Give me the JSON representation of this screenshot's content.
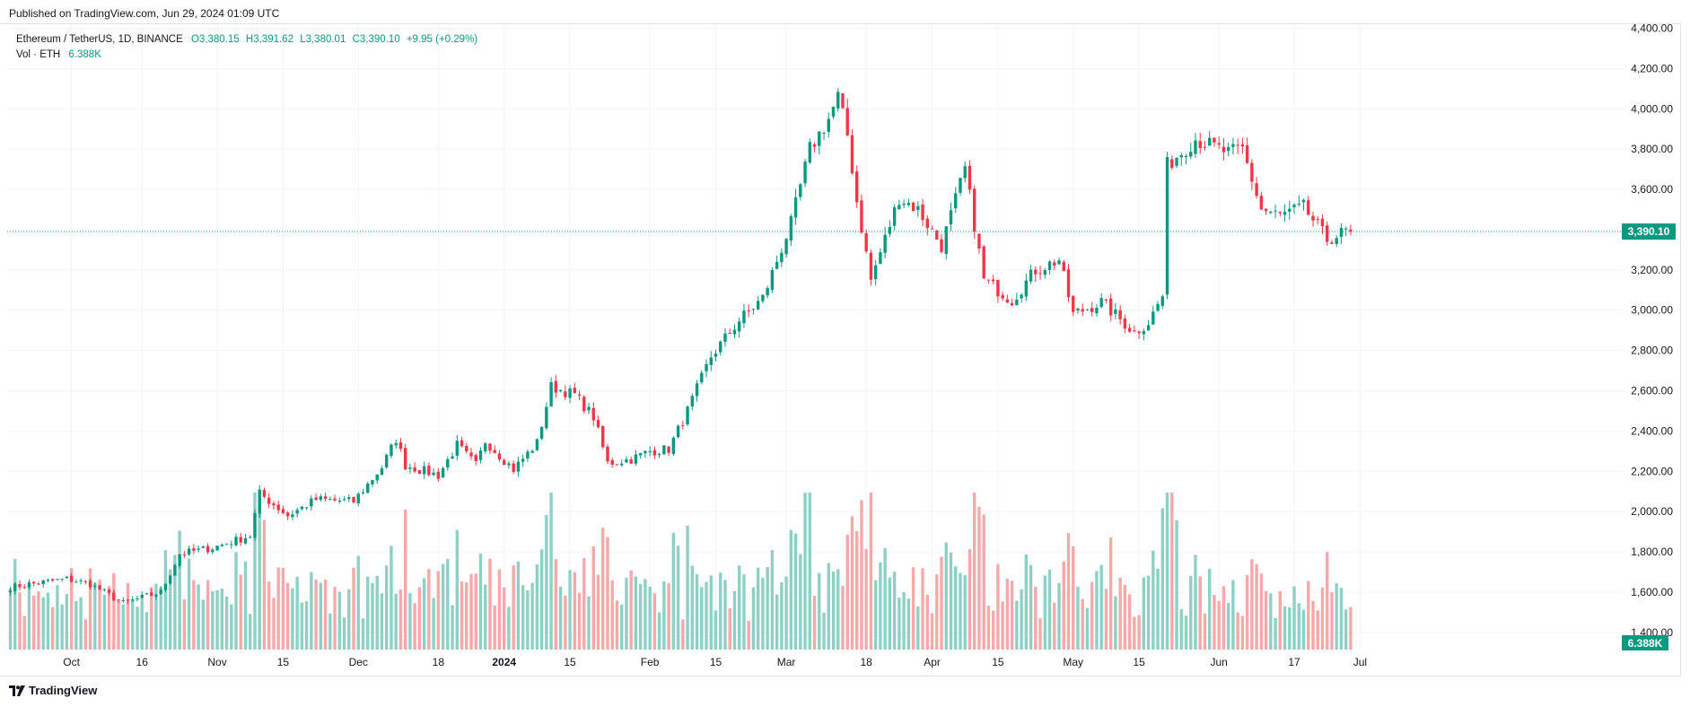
{
  "header": {
    "published": "Published on TradingView.com, Jun 29, 2024 01:09 UTC"
  },
  "legend": {
    "symbol": "Ethereum / TetherUS, 1D, BINANCE",
    "open": "O3,380.15",
    "high": "H3,391.62",
    "low": "L3,380.01",
    "close": "C3,390.10",
    "change": "+9.95 (+0.29%)",
    "volume_label": "Vol · ETH",
    "volume_value": "6.388K"
  },
  "footer": {
    "brand": "TradingView"
  },
  "colors": {
    "up": "#089981",
    "down": "#f23645",
    "vol_up": "#8fd0c6",
    "vol_down": "#f7a9a9",
    "grid": "#f0f3fa",
    "text": "#131722"
  },
  "chart_data": {
    "type": "candlestick",
    "series_name": "Ethereum / TetherUS, 1D, BINANCE",
    "price_axis": {
      "ylim": [
        1310,
        4420
      ],
      "ticks": [
        1400,
        1600,
        1800,
        2000,
        2200,
        2400,
        2600,
        2800,
        3000,
        3200,
        3400,
        3600,
        3800,
        4000,
        4200,
        4400
      ],
      "tick_labels": [
        "1,400.00",
        "1,600.00",
        "1,800.00",
        "2,000.00",
        "2,200.00",
        "2,400.00",
        "2,600.00",
        "2,800.00",
        "3,000.00",
        "3,200.00",
        "3,400.00",
        "3,600.00",
        "3,800.00",
        "4,000.00",
        "4,200.00",
        "4,400.00"
      ]
    },
    "time_axis": {
      "start": "2023-09-18",
      "end": "2024-06-29",
      "ticks": [
        {
          "date": "2023-10-01",
          "label": "Oct"
        },
        {
          "date": "2023-10-16",
          "label": "16"
        },
        {
          "date": "2023-11-01",
          "label": "Nov"
        },
        {
          "date": "2023-11-15",
          "label": "15"
        },
        {
          "date": "2023-12-01",
          "label": "Dec"
        },
        {
          "date": "2023-12-18",
          "label": "18"
        },
        {
          "date": "2024-01-01",
          "label": "2024"
        },
        {
          "date": "2024-01-15",
          "label": "15"
        },
        {
          "date": "2024-02-01",
          "label": "Feb"
        },
        {
          "date": "2024-02-15",
          "label": "15"
        },
        {
          "date": "2024-03-01",
          "label": "Mar"
        },
        {
          "date": "2024-03-18",
          "label": "18"
        },
        {
          "date": "2024-04-01",
          "label": "Apr"
        },
        {
          "date": "2024-04-15",
          "label": "15"
        },
        {
          "date": "2024-05-01",
          "label": "May"
        },
        {
          "date": "2024-05-15",
          "label": "15"
        },
        {
          "date": "2024-06-01",
          "label": "Jun"
        },
        {
          "date": "2024-06-17",
          "label": "17"
        },
        {
          "date": "2024-07-01",
          "label": "Jul"
        }
      ]
    },
    "last_price": {
      "value": 3390.1,
      "label": "3,390.10"
    },
    "last_volume": {
      "label": "6.388K"
    },
    "close_anchors": [
      [
        "2023-09-18",
        1625
      ],
      [
        "2023-09-30",
        1665
      ],
      [
        "2023-10-05",
        1640
      ],
      [
        "2023-10-12",
        1545
      ],
      [
        "2023-10-20",
        1600
      ],
      [
        "2023-10-24",
        1790
      ],
      [
        "2023-10-31",
        1820
      ],
      [
        "2023-11-08",
        1880
      ],
      [
        "2023-11-10",
        2090
      ],
      [
        "2023-11-16",
        1980
      ],
      [
        "2023-11-22",
        2060
      ],
      [
        "2023-11-30",
        2050
      ],
      [
        "2023-12-06",
        2220
      ],
      [
        "2023-12-09",
        2360
      ],
      [
        "2023-12-11",
        2230
      ],
      [
        "2023-12-18",
        2180
      ],
      [
        "2023-12-22",
        2330
      ],
      [
        "2023-12-26",
        2230
      ],
      [
        "2023-12-28",
        2350
      ],
      [
        "2024-01-03",
        2210
      ],
      [
        "2024-01-08",
        2340
      ],
      [
        "2024-01-11",
        2620
      ],
      [
        "2024-01-16",
        2580
      ],
      [
        "2024-01-20",
        2470
      ],
      [
        "2024-01-23",
        2240
      ],
      [
        "2024-01-28",
        2260
      ],
      [
        "2024-02-01",
        2300
      ],
      [
        "2024-02-05",
        2310
      ],
      [
        "2024-02-09",
        2500
      ],
      [
        "2024-02-14",
        2770
      ],
      [
        "2024-02-20",
        2950
      ],
      [
        "2024-02-25",
        3060
      ],
      [
        "2024-03-02",
        3430
      ],
      [
        "2024-03-06",
        3800
      ],
      [
        "2024-03-10",
        3950
      ],
      [
        "2024-03-12",
        4060
      ],
      [
        "2024-03-14",
        3870
      ],
      [
        "2024-03-16",
        3540
      ],
      [
        "2024-03-19",
        3150
      ],
      [
        "2024-03-25",
        3560
      ],
      [
        "2024-03-29",
        3500
      ],
      [
        "2024-04-03",
        3320
      ],
      [
        "2024-04-08",
        3700
      ],
      [
        "2024-04-12",
        3150
      ],
      [
        "2024-04-18",
        3050
      ],
      [
        "2024-04-23",
        3200
      ],
      [
        "2024-04-28",
        3250
      ],
      [
        "2024-05-01",
        2980
      ],
      [
        "2024-05-07",
        3040
      ],
      [
        "2024-05-14",
        2890
      ],
      [
        "2024-05-17",
        2940
      ],
      [
        "2024-05-20",
        3070
      ],
      [
        "2024-05-21",
        3720
      ],
      [
        "2024-05-27",
        3850
      ],
      [
        "2024-06-03",
        3780
      ],
      [
        "2024-06-06",
        3800
      ],
      [
        "2024-06-10",
        3500
      ],
      [
        "2024-06-14",
        3470
      ],
      [
        "2024-06-19",
        3510
      ],
      [
        "2024-06-24",
        3350
      ],
      [
        "2024-06-28",
        3390
      ]
    ],
    "volume_axis_note": "volume shown as bars at chart bottom, no printed scale"
  }
}
